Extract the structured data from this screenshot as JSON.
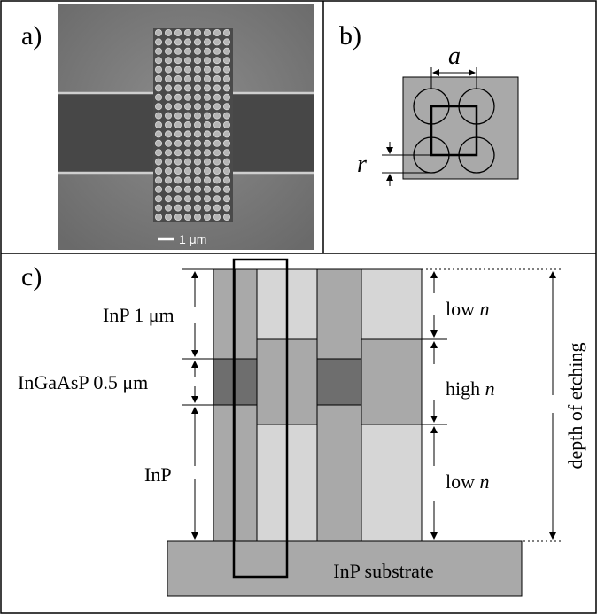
{
  "panel_a": {
    "label": "a)",
    "scale_bar_label": "1 μm"
  },
  "panel_b": {
    "label": "b)",
    "lattice_constant": "a",
    "radius": "r"
  },
  "panel_c": {
    "label": "c)",
    "left_labels": {
      "top_layer": "InP 1 μm",
      "middle_layer": "InGaAsP 0.5 μm",
      "bottom_layer": "InP"
    },
    "right_labels": {
      "top": "low",
      "middle": "high",
      "bottom": "low",
      "index_symbol": "n"
    },
    "depth_label": "depth of etching",
    "substrate_label": "InP substrate"
  },
  "colors": {
    "border": "#000000",
    "sem_background": "#7d7d7d",
    "waveguide": "#4a4a4a",
    "hole_gray": "#a8a8a8",
    "dark_gray": "#6e6e6e",
    "mid_gray": "#a9a9a9",
    "light_gray": "#d6d6d6"
  }
}
